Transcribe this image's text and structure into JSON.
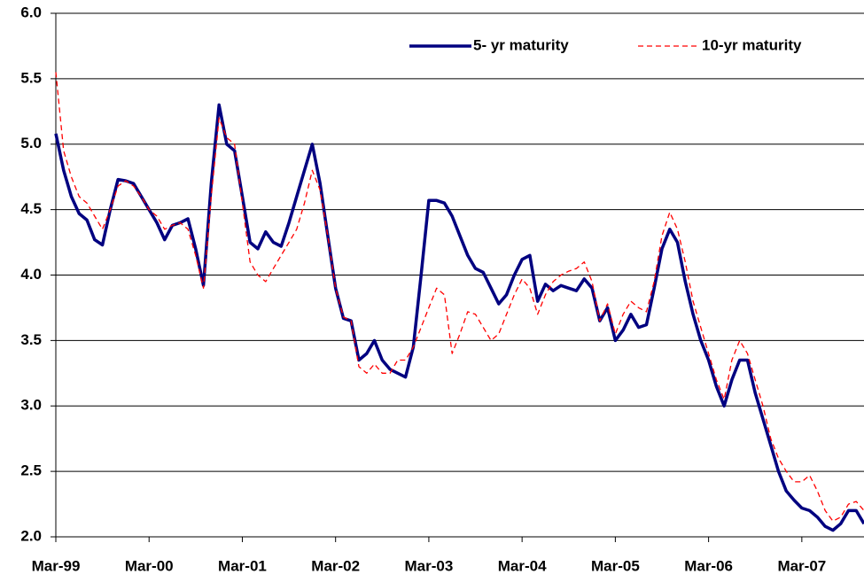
{
  "chart_data": {
    "type": "line",
    "categories": [
      "Mar-99",
      null,
      null,
      null,
      null,
      null,
      null,
      null,
      null,
      null,
      null,
      null,
      "Mar-00",
      null,
      null,
      null,
      null,
      null,
      null,
      null,
      null,
      null,
      null,
      null,
      "Mar-01",
      null,
      null,
      null,
      null,
      null,
      null,
      null,
      null,
      null,
      null,
      null,
      "Mar-02",
      null,
      null,
      null,
      null,
      null,
      null,
      null,
      null,
      null,
      null,
      null,
      "Mar-03",
      null,
      null,
      null,
      null,
      null,
      null,
      null,
      null,
      null,
      null,
      null,
      "Mar-04",
      null,
      null,
      null,
      null,
      null,
      null,
      null,
      null,
      null,
      null,
      null,
      "Mar-05",
      null,
      null,
      null,
      null,
      null,
      null,
      null,
      null,
      null,
      null,
      null,
      "Mar-06",
      null,
      null,
      null,
      null,
      null,
      null,
      null,
      null,
      null,
      null,
      null,
      "Mar-07",
      null,
      null,
      null,
      null,
      null,
      null,
      null,
      null
    ],
    "series": [
      {
        "name": "5- yr maturity",
        "color": "#000080",
        "values": [
          5.08,
          4.8,
          4.6,
          4.47,
          4.42,
          4.27,
          4.23,
          4.5,
          4.73,
          4.72,
          4.7,
          4.6,
          4.5,
          4.4,
          4.27,
          4.38,
          4.4,
          4.43,
          4.2,
          3.92,
          4.7,
          5.3,
          5.0,
          4.95,
          4.6,
          4.25,
          4.2,
          4.33,
          4.25,
          4.22,
          4.4,
          4.6,
          4.8,
          5.0,
          4.7,
          4.3,
          3.9,
          3.67,
          3.65,
          3.35,
          3.4,
          3.5,
          3.35,
          3.28,
          3.25,
          3.22,
          3.45,
          4.0,
          4.57,
          4.57,
          4.55,
          4.45,
          4.3,
          4.15,
          4.05,
          4.02,
          3.9,
          3.78,
          3.85,
          4.0,
          4.12,
          4.15,
          3.8,
          3.93,
          3.88,
          3.92,
          3.9,
          3.88,
          3.97,
          3.9,
          3.65,
          3.75,
          3.5,
          3.58,
          3.7,
          3.6,
          3.62,
          3.9,
          4.2,
          4.35,
          4.25,
          3.95,
          3.7,
          3.5,
          3.35,
          3.15,
          3.0,
          3.2,
          3.35,
          3.35,
          3.1,
          2.9,
          2.7,
          2.5,
          2.35,
          2.28,
          2.22,
          2.2,
          2.15,
          2.08,
          2.05,
          2.1,
          2.2,
          2.2,
          2.1
        ]
      },
      {
        "name": "10-yr maturity",
        "color": "#ff0000",
        "values": [
          5.55,
          4.95,
          4.75,
          4.6,
          4.55,
          4.45,
          4.35,
          4.5,
          4.68,
          4.72,
          4.68,
          4.6,
          4.5,
          4.45,
          4.35,
          4.38,
          4.4,
          4.35,
          4.15,
          3.9,
          4.6,
          5.2,
          5.05,
          5.0,
          4.55,
          4.1,
          4.0,
          3.95,
          4.05,
          4.15,
          4.25,
          4.35,
          4.55,
          4.8,
          4.65,
          4.3,
          3.9,
          3.68,
          3.65,
          3.3,
          3.25,
          3.32,
          3.25,
          3.25,
          3.35,
          3.35,
          3.45,
          3.6,
          3.75,
          3.9,
          3.85,
          3.4,
          3.55,
          3.72,
          3.7,
          3.6,
          3.5,
          3.55,
          3.7,
          3.85,
          3.97,
          3.9,
          3.7,
          3.85,
          3.95,
          4.0,
          4.03,
          4.05,
          4.1,
          3.95,
          3.65,
          3.78,
          3.55,
          3.7,
          3.8,
          3.75,
          3.72,
          3.95,
          4.3,
          4.48,
          4.35,
          4.1,
          3.8,
          3.6,
          3.4,
          3.2,
          3.05,
          3.35,
          3.5,
          3.4,
          3.2,
          3.0,
          2.75,
          2.6,
          2.5,
          2.42,
          2.42,
          2.47,
          2.35,
          2.2,
          2.12,
          2.15,
          2.25,
          2.27,
          2.2
        ]
      }
    ],
    "ylim": [
      2,
      6
    ],
    "yticks": [
      {
        "value": 2,
        "label": "2.0"
      },
      {
        "value": 2.5,
        "label": "2.5"
      },
      {
        "value": 3,
        "label": "3.0"
      },
      {
        "value": 3.5,
        "label": "3.5"
      },
      {
        "value": 4,
        "label": "4.0"
      },
      {
        "value": 4.5,
        "label": "4.5"
      },
      {
        "value": 5,
        "label": "5.0"
      },
      {
        "value": 5.5,
        "label": "5.5"
      },
      {
        "value": 6,
        "label": "6.0"
      }
    ],
    "grid": true,
    "legend": "top-right"
  }
}
